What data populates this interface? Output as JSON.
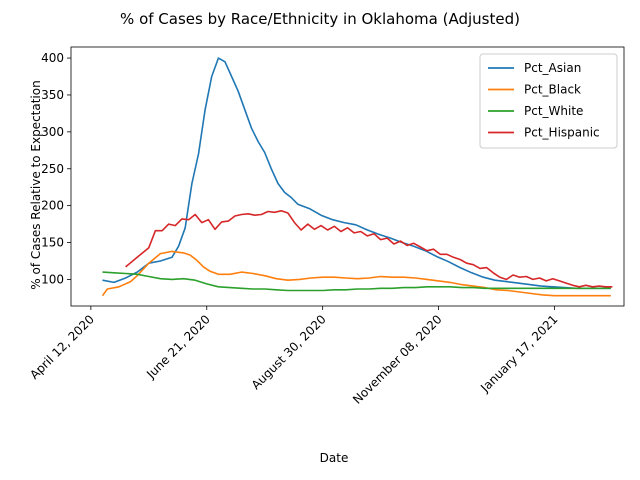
{
  "chart_data": {
    "type": "line",
    "title": "% of Cases by Race/Ethnicity in Oklahoma (Adjusted)",
    "xlabel": "Date",
    "ylabel": "% of Cases Relative to Expectation",
    "x_ticks": [
      "April 12, 2020",
      "June 21, 2020",
      "August 30, 2020",
      "November 08, 2020",
      "January 17, 2021"
    ],
    "y_ticks": [
      100,
      150,
      200,
      250,
      300,
      350,
      400
    ],
    "xlim": [
      "2020-03-31",
      "2021-02-28"
    ],
    "ylim": [
      64,
      415
    ],
    "grid": false,
    "legend_position": "top-right",
    "colors": {
      "Pct_Asian": "#1f77b4",
      "Pct_Black": "#ff7f0e",
      "Pct_White": "#2ca02c",
      "Pct_Hispanic": "#d62728"
    },
    "series": [
      {
        "name": "Pct_Asian",
        "color": "#1f77b4",
        "points": [
          [
            "2020-04-19",
            99
          ],
          [
            "2020-04-26",
            96
          ],
          [
            "2020-05-03",
            102
          ],
          [
            "2020-05-10",
            110
          ],
          [
            "2020-05-17",
            122
          ],
          [
            "2020-05-24",
            125
          ],
          [
            "2020-05-31",
            130
          ],
          [
            "2020-06-04",
            145
          ],
          [
            "2020-06-08",
            170
          ],
          [
            "2020-06-12",
            230
          ],
          [
            "2020-06-16",
            270
          ],
          [
            "2020-06-20",
            330
          ],
          [
            "2020-06-24",
            375
          ],
          [
            "2020-06-28",
            400
          ],
          [
            "2020-07-02",
            395
          ],
          [
            "2020-07-06",
            375
          ],
          [
            "2020-07-10",
            355
          ],
          [
            "2020-07-14",
            330
          ],
          [
            "2020-07-18",
            305
          ],
          [
            "2020-07-22",
            287
          ],
          [
            "2020-07-26",
            272
          ],
          [
            "2020-07-30",
            250
          ],
          [
            "2020-08-03",
            230
          ],
          [
            "2020-08-07",
            218
          ],
          [
            "2020-08-11",
            211
          ],
          [
            "2020-08-15",
            202
          ],
          [
            "2020-08-22",
            196
          ],
          [
            "2020-08-29",
            187
          ],
          [
            "2020-09-05",
            181
          ],
          [
            "2020-09-12",
            177
          ],
          [
            "2020-09-19",
            174
          ],
          [
            "2020-09-26",
            167
          ],
          [
            "2020-10-03",
            161
          ],
          [
            "2020-10-10",
            156
          ],
          [
            "2020-10-17",
            150
          ],
          [
            "2020-10-24",
            145
          ],
          [
            "2020-10-31",
            139
          ],
          [
            "2020-11-07",
            131
          ],
          [
            "2020-11-14",
            124
          ],
          [
            "2020-11-21",
            116
          ],
          [
            "2020-11-28",
            109
          ],
          [
            "2020-12-05",
            103
          ],
          [
            "2020-12-12",
            99
          ],
          [
            "2020-12-19",
            97
          ],
          [
            "2020-12-26",
            95
          ],
          [
            "2021-01-02",
            93
          ],
          [
            "2021-01-09",
            91
          ],
          [
            "2021-01-16",
            90
          ],
          [
            "2021-01-23",
            89
          ],
          [
            "2021-01-30",
            88
          ],
          [
            "2021-02-06",
            88
          ],
          [
            "2021-02-13",
            88
          ],
          [
            "2021-02-20",
            88
          ]
        ]
      },
      {
        "name": "Pct_Black",
        "color": "#ff7f0e",
        "points": [
          [
            "2020-04-19",
            78
          ],
          [
            "2020-04-22",
            87
          ],
          [
            "2020-04-29",
            90
          ],
          [
            "2020-05-06",
            97
          ],
          [
            "2020-05-10",
            105
          ],
          [
            "2020-05-17",
            122
          ],
          [
            "2020-05-24",
            135
          ],
          [
            "2020-05-31",
            138
          ],
          [
            "2020-06-07",
            136
          ],
          [
            "2020-06-11",
            133
          ],
          [
            "2020-06-15",
            126
          ],
          [
            "2020-06-19",
            117
          ],
          [
            "2020-06-23",
            111
          ],
          [
            "2020-06-28",
            107
          ],
          [
            "2020-07-05",
            107
          ],
          [
            "2020-07-12",
            110
          ],
          [
            "2020-07-19",
            108
          ],
          [
            "2020-07-26",
            105
          ],
          [
            "2020-08-02",
            101
          ],
          [
            "2020-08-09",
            99
          ],
          [
            "2020-08-16",
            100
          ],
          [
            "2020-08-23",
            102
          ],
          [
            "2020-08-30",
            103
          ],
          [
            "2020-09-06",
            103
          ],
          [
            "2020-09-13",
            102
          ],
          [
            "2020-09-20",
            101
          ],
          [
            "2020-09-27",
            102
          ],
          [
            "2020-10-04",
            104
          ],
          [
            "2020-10-11",
            103
          ],
          [
            "2020-10-18",
            103
          ],
          [
            "2020-10-25",
            102
          ],
          [
            "2020-11-01",
            100
          ],
          [
            "2020-11-08",
            98
          ],
          [
            "2020-11-15",
            96
          ],
          [
            "2020-11-22",
            93
          ],
          [
            "2020-11-29",
            91
          ],
          [
            "2020-12-06",
            89
          ],
          [
            "2020-12-13",
            86
          ],
          [
            "2020-12-20",
            85
          ],
          [
            "2020-12-27",
            83
          ],
          [
            "2021-01-03",
            81
          ],
          [
            "2021-01-10",
            79
          ],
          [
            "2021-01-17",
            78
          ],
          [
            "2021-01-24",
            78
          ],
          [
            "2021-01-31",
            78
          ],
          [
            "2021-02-07",
            78
          ],
          [
            "2021-02-14",
            78
          ],
          [
            "2021-02-20",
            78
          ]
        ]
      },
      {
        "name": "Pct_White",
        "color": "#2ca02c",
        "points": [
          [
            "2020-04-19",
            110
          ],
          [
            "2020-04-26",
            109
          ],
          [
            "2020-05-03",
            108
          ],
          [
            "2020-05-10",
            107
          ],
          [
            "2020-05-17",
            104
          ],
          [
            "2020-05-24",
            101
          ],
          [
            "2020-05-31",
            100
          ],
          [
            "2020-06-07",
            101
          ],
          [
            "2020-06-14",
            99
          ],
          [
            "2020-06-21",
            94
          ],
          [
            "2020-06-28",
            90
          ],
          [
            "2020-07-05",
            89
          ],
          [
            "2020-07-12",
            88
          ],
          [
            "2020-07-19",
            87
          ],
          [
            "2020-07-26",
            87
          ],
          [
            "2020-08-02",
            86
          ],
          [
            "2020-08-09",
            85
          ],
          [
            "2020-08-16",
            85
          ],
          [
            "2020-08-23",
            85
          ],
          [
            "2020-08-30",
            85
          ],
          [
            "2020-09-06",
            86
          ],
          [
            "2020-09-13",
            86
          ],
          [
            "2020-09-20",
            87
          ],
          [
            "2020-09-27",
            87
          ],
          [
            "2020-10-04",
            88
          ],
          [
            "2020-10-11",
            88
          ],
          [
            "2020-10-18",
            89
          ],
          [
            "2020-10-25",
            89
          ],
          [
            "2020-11-01",
            90
          ],
          [
            "2020-11-08",
            90
          ],
          [
            "2020-11-15",
            90
          ],
          [
            "2020-11-22",
            89
          ],
          [
            "2020-11-29",
            89
          ],
          [
            "2020-12-06",
            88
          ],
          [
            "2020-12-13",
            88
          ],
          [
            "2020-12-20",
            88
          ],
          [
            "2020-12-27",
            88
          ],
          [
            "2021-01-03",
            88
          ],
          [
            "2021-01-10",
            88
          ],
          [
            "2021-01-17",
            88
          ],
          [
            "2021-01-24",
            88
          ],
          [
            "2021-01-31",
            88
          ],
          [
            "2021-02-07",
            88
          ],
          [
            "2021-02-14",
            88
          ],
          [
            "2021-02-20",
            88
          ]
        ]
      },
      {
        "name": "Pct_Hispanic",
        "color": "#d62728",
        "points": [
          [
            "2020-05-03",
            117
          ],
          [
            "2020-05-10",
            130
          ],
          [
            "2020-05-17",
            143
          ],
          [
            "2020-05-21",
            166
          ],
          [
            "2020-05-25",
            166
          ],
          [
            "2020-05-29",
            175
          ],
          [
            "2020-06-02",
            173
          ],
          [
            "2020-06-06",
            182
          ],
          [
            "2020-06-10",
            181
          ],
          [
            "2020-06-14",
            188
          ],
          [
            "2020-06-18",
            177
          ],
          [
            "2020-06-22",
            181
          ],
          [
            "2020-06-26",
            168
          ],
          [
            "2020-06-30",
            178
          ],
          [
            "2020-07-04",
            179
          ],
          [
            "2020-07-08",
            186
          ],
          [
            "2020-07-12",
            188
          ],
          [
            "2020-07-16",
            189
          ],
          [
            "2020-07-20",
            187
          ],
          [
            "2020-07-24",
            188
          ],
          [
            "2020-07-28",
            192
          ],
          [
            "2020-08-01",
            191
          ],
          [
            "2020-08-05",
            193
          ],
          [
            "2020-08-09",
            190
          ],
          [
            "2020-08-13",
            177
          ],
          [
            "2020-08-17",
            167
          ],
          [
            "2020-08-21",
            175
          ],
          [
            "2020-08-25",
            168
          ],
          [
            "2020-08-29",
            173
          ],
          [
            "2020-09-02",
            167
          ],
          [
            "2020-09-06",
            172
          ],
          [
            "2020-09-10",
            165
          ],
          [
            "2020-09-14",
            170
          ],
          [
            "2020-09-18",
            163
          ],
          [
            "2020-09-22",
            165
          ],
          [
            "2020-09-26",
            159
          ],
          [
            "2020-09-30",
            162
          ],
          [
            "2020-10-04",
            154
          ],
          [
            "2020-10-08",
            156
          ],
          [
            "2020-10-12",
            148
          ],
          [
            "2020-10-16",
            152
          ],
          [
            "2020-10-20",
            146
          ],
          [
            "2020-10-24",
            149
          ],
          [
            "2020-10-28",
            144
          ],
          [
            "2020-11-01",
            139
          ],
          [
            "2020-11-05",
            141
          ],
          [
            "2020-11-09",
            134
          ],
          [
            "2020-11-13",
            134
          ],
          [
            "2020-11-17",
            130
          ],
          [
            "2020-11-21",
            127
          ],
          [
            "2020-11-25",
            122
          ],
          [
            "2020-11-29",
            120
          ],
          [
            "2020-12-03",
            115
          ],
          [
            "2020-12-07",
            116
          ],
          [
            "2020-12-11",
            109
          ],
          [
            "2020-12-15",
            103
          ],
          [
            "2020-12-19",
            100
          ],
          [
            "2020-12-23",
            106
          ],
          [
            "2020-12-27",
            103
          ],
          [
            "2020-12-31",
            104
          ],
          [
            "2021-01-04",
            100
          ],
          [
            "2021-01-08",
            102
          ],
          [
            "2021-01-12",
            98
          ],
          [
            "2021-01-16",
            101
          ],
          [
            "2021-01-20",
            98
          ],
          [
            "2021-01-24",
            95
          ],
          [
            "2021-01-28",
            92
          ],
          [
            "2021-02-01",
            90
          ],
          [
            "2021-02-05",
            92
          ],
          [
            "2021-02-09",
            90
          ],
          [
            "2021-02-13",
            91
          ],
          [
            "2021-02-17",
            90
          ],
          [
            "2021-02-21",
            90
          ]
        ]
      }
    ]
  }
}
